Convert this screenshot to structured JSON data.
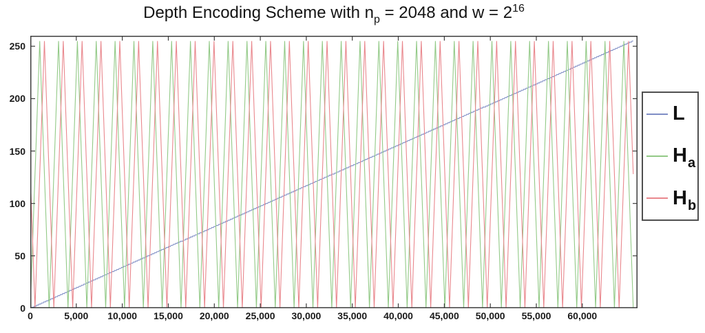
{
  "title": {
    "parts": {
      "p0": "Depth Encoding Scheme with n",
      "sub": "p",
      "p1": " = 2048 and w = 2",
      "sup": "16"
    }
  },
  "colors": {
    "line_L": "#7f8dc5",
    "line_Ha": "#92c986",
    "line_Hb": "#e9878d",
    "frame": "#3d3d3d",
    "tick": "#3d3d3d",
    "text": "#1a1a1a",
    "legend_border": "#4f4f4f",
    "background": "#ffffff"
  },
  "chart_data": {
    "type": "line",
    "title": "Depth Encoding Scheme with n_p = 2048 and w = 2^16",
    "xlabel": "",
    "ylabel": "",
    "grid": false,
    "xlim": [
      0,
      66000
    ],
    "ylim": [
      0,
      260
    ],
    "x_domain": [
      0,
      65535
    ],
    "sample_step": 64,
    "xticks": {
      "values": [
        0,
        5000,
        10000,
        15000,
        20000,
        25000,
        30000,
        35000,
        40000,
        45000,
        50000,
        55000,
        60000
      ],
      "labels": [
        "0",
        "5,000",
        "10,000",
        "15,000",
        "20,000",
        "25,000",
        "30,000",
        "35,000",
        "40,000",
        "45,000",
        "50,000",
        "55,000",
        "60,000"
      ]
    },
    "yticks": {
      "values": [
        0,
        50,
        100,
        150,
        200,
        250
      ],
      "labels": [
        "0",
        "50",
        "100",
        "150",
        "200",
        "250"
      ]
    },
    "series": [
      {
        "name": "L",
        "color": "#7f8dc5",
        "kind": "linear",
        "description": "L(d) = round(255*d/65535): 8-bit quantized linear ramp from (0,0) to (65535,255)",
        "start_value": 0,
        "end_value": 255
      },
      {
        "name": "Ha",
        "color": "#92c986",
        "kind": "triangle",
        "description": "H_a(d): triangle wave, period 2048, amplitude 0..255, H_a(0)=0 rising, peaks at d=1024+2048k",
        "period": 2048,
        "phase_shift": 0,
        "min_value": 0,
        "max_value": 255
      },
      {
        "name": "Hb",
        "color": "#e9878d",
        "kind": "triangle",
        "description": "H_b(d): triangle wave, period 2048, amplitude 0..255, shifted +512 vs H_a; H_b(0)=128 falling, zeros at d=512+2048k, peaks at d=1536+2048k",
        "period": 2048,
        "phase_shift": 512,
        "min_value": 0,
        "max_value": 255
      }
    ],
    "legend": {
      "position": "outside-right",
      "entries": [
        {
          "name": "L",
          "label": "L",
          "sub": "",
          "color": "#7f8dc5"
        },
        {
          "name": "Ha",
          "label": "H",
          "sub": "a",
          "color": "#92c986"
        },
        {
          "name": "Hb",
          "label": "H",
          "sub": "b",
          "color": "#e9878d"
        }
      ]
    }
  }
}
